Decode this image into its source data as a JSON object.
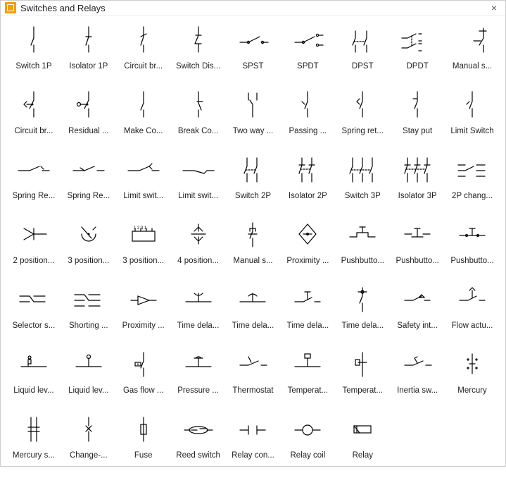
{
  "window": {
    "title": "Switches and Relays",
    "close_glyph": "×"
  },
  "grid": {
    "cols": 9,
    "rows": 7
  },
  "symbols": [
    {
      "id": "switch-1p",
      "label": "Switch 1P"
    },
    {
      "id": "isolator-1p",
      "label": "Isolator 1P"
    },
    {
      "id": "circuit-breaker-1",
      "label": "Circuit br..."
    },
    {
      "id": "switch-disconnector",
      "label": "Switch Dis..."
    },
    {
      "id": "spst",
      "label": "SPST"
    },
    {
      "id": "spdt",
      "label": "SPDT"
    },
    {
      "id": "dpst",
      "label": "DPST"
    },
    {
      "id": "dpdt",
      "label": "DPDT"
    },
    {
      "id": "manual-switch",
      "label": "Manual s..."
    },
    {
      "id": "circuit-breaker-2",
      "label": "Circuit br..."
    },
    {
      "id": "residual",
      "label": "Residual ..."
    },
    {
      "id": "make-contact",
      "label": "Make Co..."
    },
    {
      "id": "break-contact",
      "label": "Break Co..."
    },
    {
      "id": "two-way",
      "label": "Two way ..."
    },
    {
      "id": "passing",
      "label": "Passing ..."
    },
    {
      "id": "spring-return",
      "label": "Spring ret..."
    },
    {
      "id": "stay-put",
      "label": "Stay put"
    },
    {
      "id": "limit-switch",
      "label": "Limit Switch"
    },
    {
      "id": "spring-return-2",
      "label": "Spring Re..."
    },
    {
      "id": "spring-return-3",
      "label": "Spring Re..."
    },
    {
      "id": "limit-switch-2",
      "label": "Limit swit..."
    },
    {
      "id": "limit-switch-3",
      "label": "Limit swit..."
    },
    {
      "id": "switch-2p",
      "label": "Switch 2P"
    },
    {
      "id": "isolator-2p",
      "label": "Isolator 2P"
    },
    {
      "id": "switch-3p",
      "label": "Switch 3P"
    },
    {
      "id": "isolator-3p",
      "label": "Isolator 3P"
    },
    {
      "id": "changeover-2p",
      "label": "2P chang..."
    },
    {
      "id": "pos-2",
      "label": "2 position..."
    },
    {
      "id": "pos-3",
      "label": "3 position..."
    },
    {
      "id": "pos-3b",
      "label": "3 position..."
    },
    {
      "id": "pos-4",
      "label": "4 position..."
    },
    {
      "id": "manual-switch-2",
      "label": "Manual s..."
    },
    {
      "id": "proximity",
      "label": "Proximity ..."
    },
    {
      "id": "pushbutton-1",
      "label": "Pushbutto..."
    },
    {
      "id": "pushbutton-2",
      "label": "Pushbutto..."
    },
    {
      "id": "pushbutton-3",
      "label": "Pushbutto..."
    },
    {
      "id": "selector",
      "label": "Selector s..."
    },
    {
      "id": "shorting",
      "label": "Shorting ..."
    },
    {
      "id": "proximity-2",
      "label": "Proximity ..."
    },
    {
      "id": "time-delay-1",
      "label": "Time dela..."
    },
    {
      "id": "time-delay-2",
      "label": "Time dela..."
    },
    {
      "id": "time-delay-3",
      "label": "Time dela..."
    },
    {
      "id": "time-delay-4",
      "label": "Time dela..."
    },
    {
      "id": "safety-interlock",
      "label": "Safety int..."
    },
    {
      "id": "flow-actuated",
      "label": "Flow actu..."
    },
    {
      "id": "liquid-level-1",
      "label": "Liquid lev..."
    },
    {
      "id": "liquid-level-2",
      "label": "Liquid lev..."
    },
    {
      "id": "gas-flow",
      "label": "Gas flow ..."
    },
    {
      "id": "pressure",
      "label": "Pressure ..."
    },
    {
      "id": "thermostat",
      "label": "Thermostat"
    },
    {
      "id": "temperature-1",
      "label": "Temperat..."
    },
    {
      "id": "temperature-2",
      "label": "Temperat..."
    },
    {
      "id": "inertia",
      "label": "Inertia sw..."
    },
    {
      "id": "mercury",
      "label": "Mercury"
    },
    {
      "id": "mercury-switch",
      "label": "Mercury s..."
    },
    {
      "id": "changeover",
      "label": "Change-..."
    },
    {
      "id": "fuse",
      "label": "Fuse"
    },
    {
      "id": "reed-switch",
      "label": "Reed switch"
    },
    {
      "id": "relay-contact",
      "label": "Relay con..."
    },
    {
      "id": "relay-coil",
      "label": "Relay coil"
    },
    {
      "id": "relay",
      "label": "Relay"
    }
  ]
}
